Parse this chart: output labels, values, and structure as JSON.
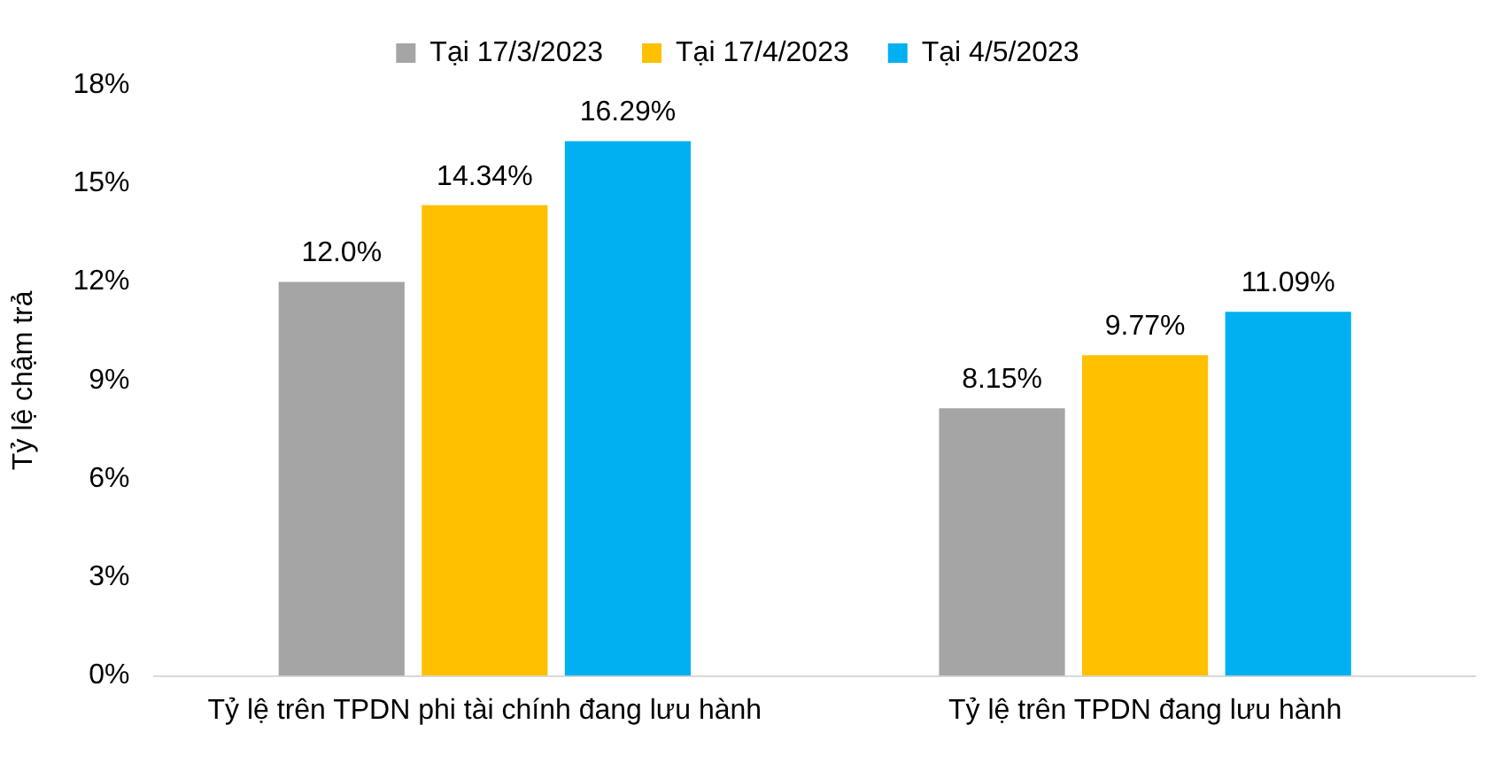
{
  "chart_data": {
    "type": "bar",
    "ylabel": "Tỷ lệ chậm trả",
    "categories": [
      "Tỷ lệ trên TPDN phi tài chính đang lưu hành",
      "Tỷ lệ trên TPDN đang lưu hành"
    ],
    "series": [
      {
        "name": "Tại 17/3/2023",
        "color": "#a5a5a5",
        "values": [
          12.0,
          8.15
        ],
        "value_labels": [
          "12.0%",
          "8.15%"
        ]
      },
      {
        "name": "Tại 17/4/2023",
        "color": "#ffc000",
        "values": [
          14.34,
          9.77
        ],
        "value_labels": [
          "14.34%",
          "9.77%"
        ]
      },
      {
        "name": "Tại 4/5/2023",
        "color": "#00b0f0",
        "values": [
          16.29,
          11.09
        ],
        "value_labels": [
          "16.29%",
          "11.09%"
        ]
      }
    ],
    "ylim": [
      0,
      18
    ],
    "yticks": [
      {
        "value": 0,
        "label": "0%"
      },
      {
        "value": 3,
        "label": "3%"
      },
      {
        "value": 6,
        "label": "6%"
      },
      {
        "value": 9,
        "label": "9%"
      },
      {
        "value": 12,
        "label": "12%"
      },
      {
        "value": 15,
        "label": "15%"
      },
      {
        "value": 18,
        "label": "18%"
      }
    ],
    "grid": false,
    "legend": "top"
  }
}
